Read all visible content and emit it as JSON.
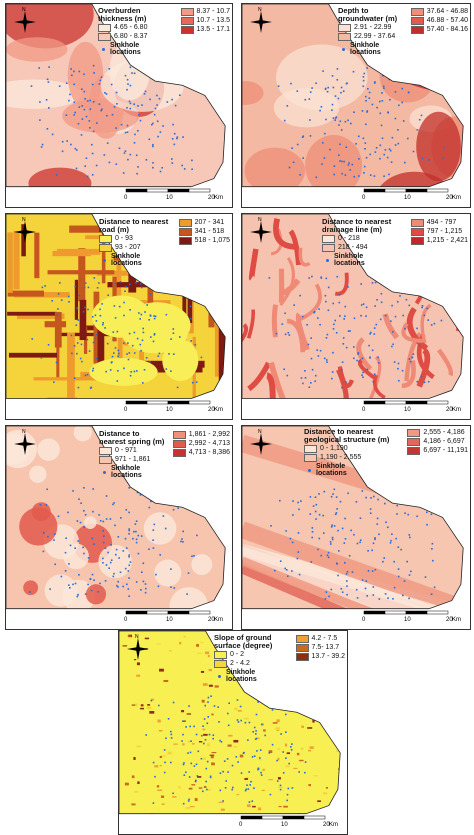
{
  "sinkhole_label": "Sinkhole locations",
  "north_label": "N",
  "scale": {
    "ticks": [
      "0",
      "10",
      "20"
    ],
    "unit": "Km"
  },
  "panels": [
    {
      "title": "Overburden thickness (m)",
      "legend_cols": [
        [
          {
            "label": "4.65 - 6.80",
            "color": "#fbe9dc"
          },
          {
            "label": "6.80 - 8.37",
            "color": "#f7c7b7"
          }
        ],
        [
          {
            "label": "8.37 - 10.7",
            "color": "#f19a85"
          },
          {
            "label": "10.7 - 13.5",
            "color": "#e7695b"
          },
          {
            "label": "13.5 - 17.1",
            "color": "#c9342e"
          }
        ]
      ]
    },
    {
      "title": "Depth to groundwater (m)",
      "legend_cols": [
        [
          {
            "label": "2.91 - 22.99",
            "color": "#fbe1d3"
          },
          {
            "label": "22.99 - 37.64",
            "color": "#f4b9a3"
          }
        ],
        [
          {
            "label": "37.64 - 46.88",
            "color": "#ee8f78"
          },
          {
            "label": "46.88 - 57.40",
            "color": "#e05c4b"
          },
          {
            "label": "57.40 - 84.16",
            "color": "#c22f2a"
          }
        ]
      ]
    },
    {
      "title": "Distance to nearest road (m)",
      "legend_cols": [
        [
          {
            "label": "0 - 93",
            "color": "#f7ee58"
          },
          {
            "label": "93 - 207",
            "color": "#f5d33a"
          }
        ],
        [
          {
            "label": "207 - 341",
            "color": "#ee9a2d"
          },
          {
            "label": "341 - 518",
            "color": "#c4571d"
          },
          {
            "label": "518 - 1,075",
            "color": "#7e1a12"
          }
        ]
      ]
    },
    {
      "title": "Distance to nearest drainage line (m)",
      "legend_cols": [
        [
          {
            "label": "0 - 218",
            "color": "#fbe6dc"
          },
          {
            "label": "218 - 494",
            "color": "#f6c3b1"
          }
        ],
        [
          {
            "label": "494 - 797",
            "color": "#ee8a76"
          },
          {
            "label": "797 - 1,215",
            "color": "#df4c44"
          },
          {
            "label": "1,215 - 2,421",
            "color": "#c2262a"
          }
        ]
      ]
    },
    {
      "title": "Distance to nearest spring (m)",
      "legend_cols": [
        [
          {
            "label": "0 - 971",
            "color": "#fbe6d8"
          },
          {
            "label": "971 - 1,861",
            "color": "#f7c4ae"
          }
        ],
        [
          {
            "label": "1,861 - 2,992",
            "color": "#f08f7a"
          },
          {
            "label": "2,992 - 4,713",
            "color": "#e25a4c"
          },
          {
            "label": "4,713 - 8,386",
            "color": "#c83032"
          }
        ]
      ]
    },
    {
      "title": "Distance to nearest geological structure (m)",
      "legend_cols": [
        [
          {
            "label": "0 - 1,190",
            "color": "#fbe6d8"
          },
          {
            "label": "1,190 - 2,555",
            "color": "#f6c6b0"
          }
        ],
        [
          {
            "label": "2,555 - 4,186",
            "color": "#f09a83"
          },
          {
            "label": "4,186 - 6,697",
            "color": "#e3675a"
          },
          {
            "label": "6,697 - 11,191",
            "color": "#c43634"
          }
        ]
      ]
    },
    {
      "title": "Slope of ground surface (degree)",
      "legend_cols": [
        [
          {
            "label": "0 - 2",
            "color": "#f8ef52"
          },
          {
            "label": "2 - 4.2",
            "color": "#f4d63a"
          }
        ],
        [
          {
            "label": "4.2 - 7.5",
            "color": "#eda233"
          },
          {
            "label": "7.5- 13.7",
            "color": "#c96a22"
          },
          {
            "label": "13.7 - 39.2",
            "color": "#8b2e12"
          }
        ]
      ]
    }
  ]
}
